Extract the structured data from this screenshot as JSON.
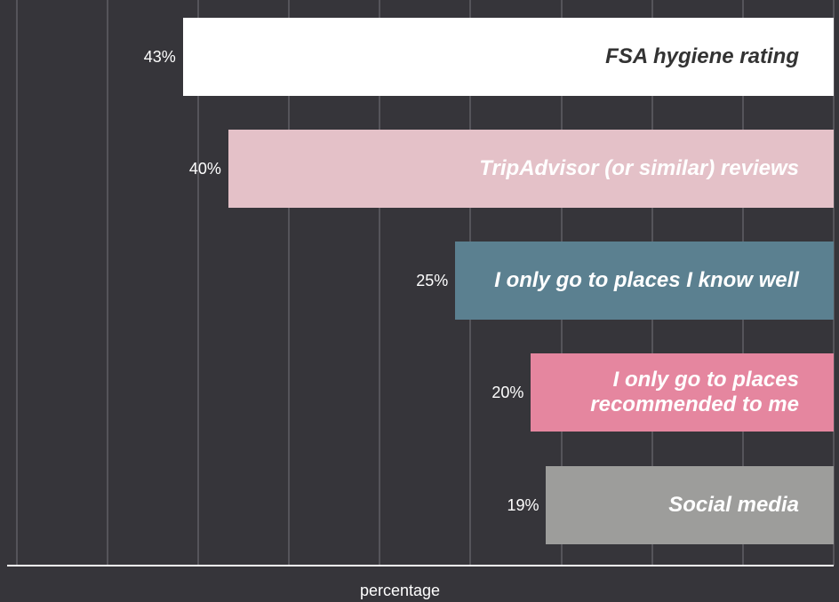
{
  "chart_data": {
    "type": "bar",
    "orientation": "horizontal",
    "categories": [
      "FSA hygiene rating",
      "TripAdvisor (or similar) reviews",
      "I only go to places I know well",
      "I only go to places recommended to me",
      "Social media"
    ],
    "values": [
      43,
      40,
      25,
      20,
      19
    ],
    "value_labels": [
      "43%",
      "40%",
      "25%",
      "20%",
      "19%"
    ],
    "colors": [
      "#ffffff",
      "#e4c1c8",
      "#5b8090",
      "#e5869f",
      "#9d9d9b"
    ],
    "xlabel": "percentage",
    "xlim": [
      0,
      54.5
    ],
    "xticks": [
      0,
      6,
      12,
      18,
      24,
      30,
      36,
      42,
      48,
      54
    ],
    "reversed": true,
    "grid": true
  }
}
